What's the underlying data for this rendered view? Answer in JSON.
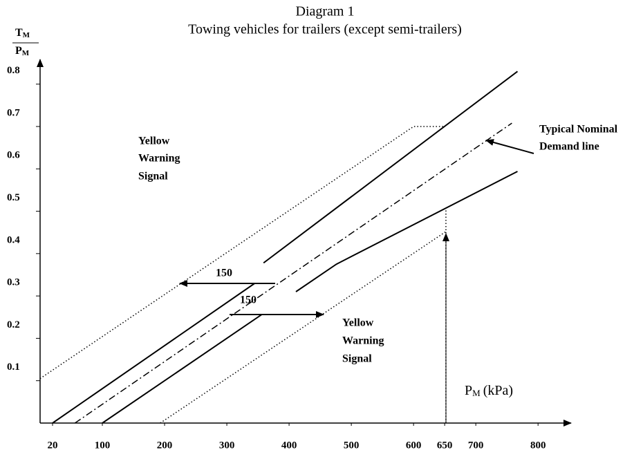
{
  "chart_data": {
    "type": "line",
    "title": "Diagram 1",
    "subtitle": "Towing vehicles for trailers (except semi-trailers)",
    "y_label": {
      "numerator": "T",
      "numerator_sub": "M",
      "denominator": "P",
      "denominator_sub": "M"
    },
    "x_label": {
      "main": "P",
      "sub": "M",
      "unit": "(kPa)"
    },
    "xlim": [
      0,
      852
    ],
    "ylim": [
      0,
      0.855
    ],
    "xticks": [
      20,
      100,
      200,
      300,
      400,
      500,
      600,
      650,
      700,
      800
    ],
    "yticks": [
      0.1,
      0.2,
      0.3,
      0.4,
      0.5,
      0.6,
      0.7,
      0.8
    ],
    "series": [
      {
        "style": "dotted",
        "x": [
          0,
          600,
          650
        ],
        "values": [
          0.105,
          0.7,
          0.7
        ]
      },
      {
        "style": "solid",
        "x": [
          20,
          345
        ],
        "values": [
          0,
          0.33
        ]
      },
      {
        "style": "solid",
        "x": [
          359,
          767
        ],
        "values": [
          0.378,
          0.83
        ]
      },
      {
        "style": "dashdot",
        "x": [
          56,
          758
        ],
        "values": [
          0,
          0.708
        ]
      },
      {
        "style": "solid",
        "x": [
          100,
          356
        ],
        "values": [
          0,
          0.256
        ]
      },
      {
        "style": "solid",
        "x": [
          411,
          476,
          767
        ],
        "values": [
          0.31,
          0.375,
          0.594
        ]
      },
      {
        "style": "dotted",
        "x": [
          193,
          652
        ],
        "values": [
          0,
          0.452
        ]
      },
      {
        "style": "dotted",
        "x": [
          652,
          652
        ],
        "values": [
          0,
          0.504
        ]
      }
    ],
    "annotations": {
      "yellow_upper": [
        "Yellow",
        "Warning",
        "Signal"
      ],
      "yellow_lower": [
        "Yellow",
        "Warning",
        "Signal"
      ],
      "demand": [
        "Typical Nominal",
        "Demand line"
      ],
      "offset_upper": "150",
      "offset_lower": "150"
    }
  }
}
